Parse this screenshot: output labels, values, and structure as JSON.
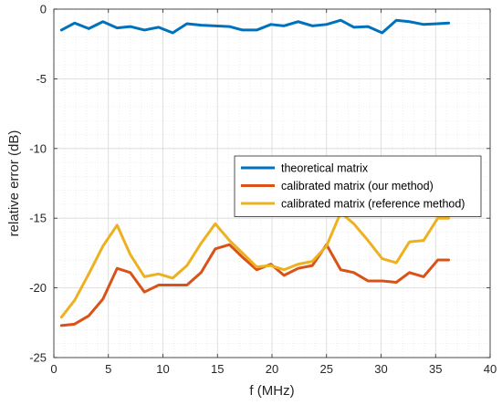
{
  "chart_data": {
    "type": "line",
    "title": "",
    "xlabel": "f (MHz)",
    "ylabel": "relative error (dB)",
    "xlim": [
      0,
      40
    ],
    "ylim": [
      -25,
      0
    ],
    "xticks": [
      0,
      5,
      10,
      15,
      20,
      25,
      30,
      35,
      40
    ],
    "yticks": [
      0,
      -5,
      -10,
      -15,
      -20,
      -25
    ],
    "grid": true,
    "minor_grid": true,
    "legend_position": "center-right",
    "x": [
      0.7,
      1.9,
      3.2,
      4.5,
      5.8,
      7.0,
      8.3,
      9.6,
      10.9,
      12.2,
      13.5,
      14.8,
      16.1,
      17.3,
      18.6,
      19.9,
      21.1,
      22.4,
      23.7,
      25.0,
      26.3,
      27.5,
      28.8,
      30.1,
      31.4,
      32.6,
      33.9,
      35.2,
      36.2
    ],
    "series": [
      {
        "name": "theoretical matrix",
        "color": "#0072BD",
        "values": [
          -1.5,
          -1.0,
          -1.4,
          -0.9,
          -1.35,
          -1.25,
          -1.5,
          -1.3,
          -1.7,
          -1.05,
          -1.15,
          -1.2,
          -1.25,
          -1.5,
          -1.5,
          -1.1,
          -1.2,
          -0.9,
          -1.2,
          -1.1,
          -0.8,
          -1.3,
          -1.25,
          -1.7,
          -0.8,
          -0.9,
          -1.1,
          -1.05,
          -1.0
        ]
      },
      {
        "name": "calibrated matrix (our method)",
        "color": "#D95319",
        "values": [
          -22.7,
          -22.6,
          -22.0,
          -20.8,
          -18.6,
          -18.9,
          -20.3,
          -19.8,
          -19.8,
          -19.8,
          -18.9,
          -17.2,
          -16.9,
          -17.8,
          -18.7,
          -18.3,
          -19.1,
          -18.6,
          -18.4,
          -16.9,
          -18.7,
          -18.9,
          -19.5,
          -19.5,
          -19.6,
          -18.9,
          -19.2,
          -18.0,
          -18.0
        ]
      },
      {
        "name": "calibrated matrix (reference method)",
        "color": "#EDB120",
        "values": [
          -22.1,
          -20.9,
          -19.0,
          -17.0,
          -15.5,
          -17.6,
          -19.2,
          -19.0,
          -19.3,
          -18.4,
          -16.8,
          -15.4,
          -16.6,
          -17.5,
          -18.5,
          -18.4,
          -18.7,
          -18.3,
          -18.1,
          -17.0,
          -14.6,
          -15.4,
          -16.6,
          -17.9,
          -18.2,
          -16.7,
          -16.6,
          -15.0,
          -15.0
        ]
      }
    ]
  }
}
